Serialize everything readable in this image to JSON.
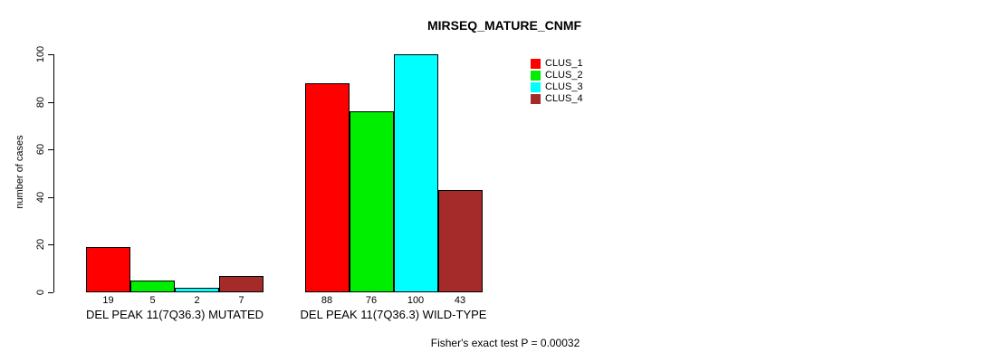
{
  "chart_data": {
    "type": "bar",
    "title": "MIRSEQ_MATURE_CNMF",
    "ylabel": "number of cases",
    "ylim": [
      0,
      100
    ],
    "yticks": [
      0,
      20,
      40,
      60,
      80,
      100
    ],
    "grid": false,
    "legend_position": "top-right",
    "categories": [
      "DEL PEAK 11(7Q36.3) MUTATED",
      "DEL PEAK 11(7Q36.3) WILD-TYPE"
    ],
    "series": [
      {
        "name": "CLUS_1",
        "color": "#FF0000",
        "values": [
          19,
          88
        ]
      },
      {
        "name": "CLUS_2",
        "color": "#00EE00",
        "values": [
          5,
          76
        ]
      },
      {
        "name": "CLUS_3",
        "color": "#00FFFF",
        "values": [
          2,
          100
        ]
      },
      {
        "name": "CLUS_4",
        "color": "#A52A2A",
        "values": [
          7,
          43
        ]
      }
    ],
    "bar_value_labels": [
      [
        19,
        5,
        2,
        7
      ],
      [
        88,
        76,
        100,
        43
      ]
    ],
    "annotation": "Fisher's exact test P = 0.00032"
  }
}
